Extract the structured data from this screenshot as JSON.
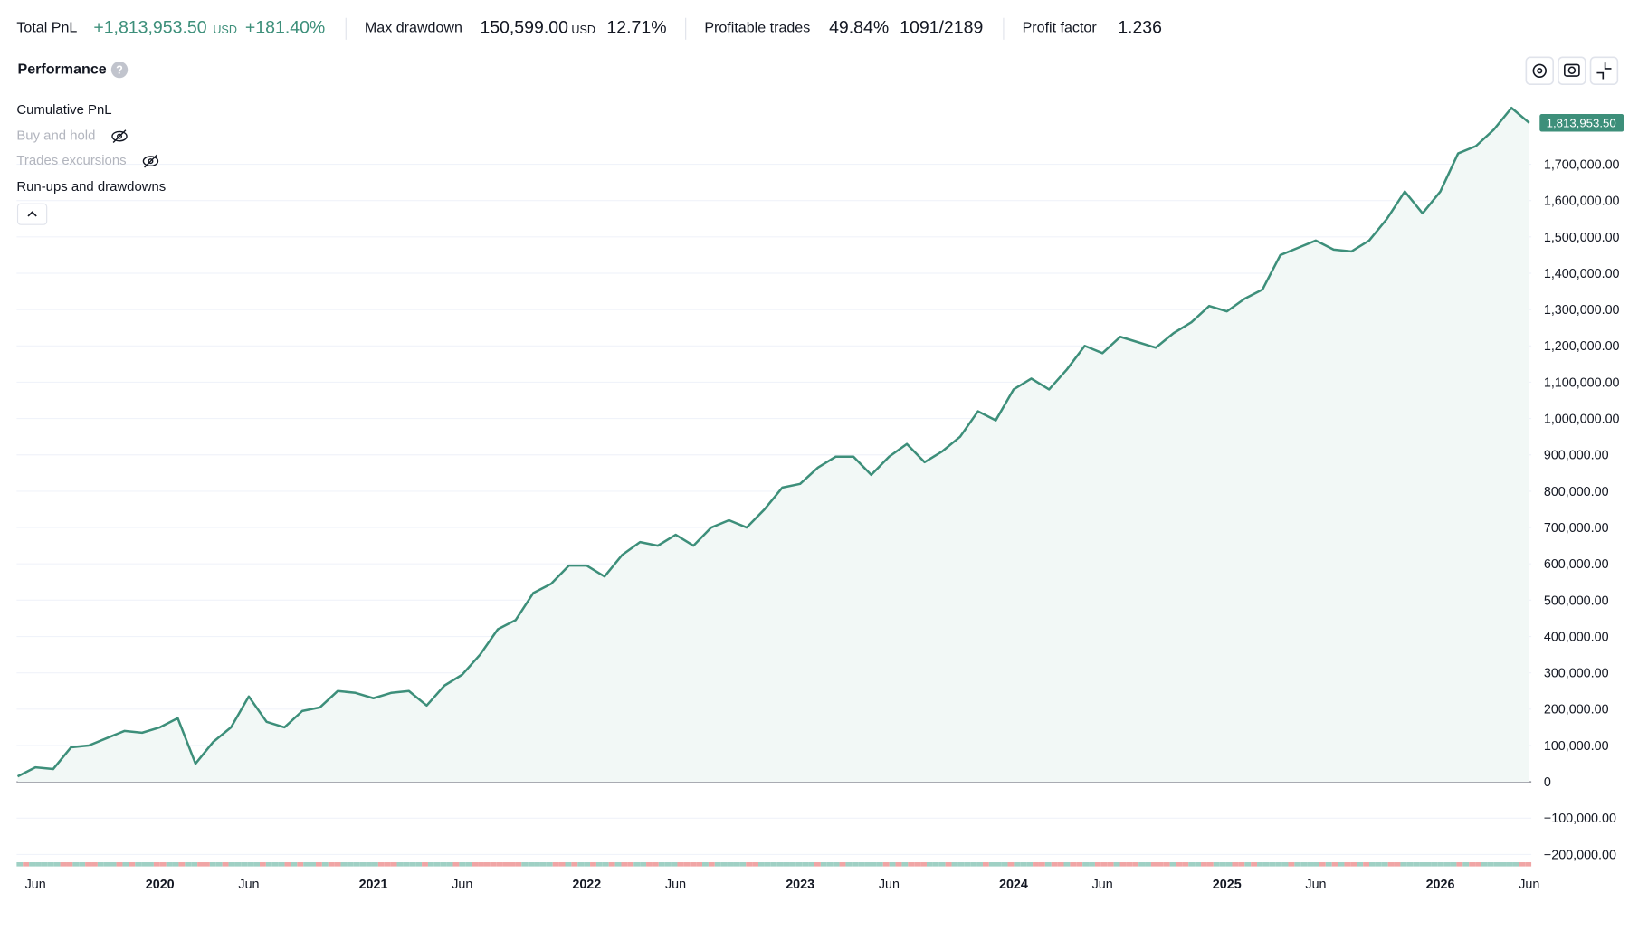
{
  "header": {
    "stats": [
      {
        "label": "Total PnL",
        "value": "+1,813,953.50",
        "unit": "USD",
        "extra": "+181.40%"
      },
      {
        "label": "Max drawdown",
        "value": "150,599.00",
        "unit": "USD",
        "extra": "12.71%"
      },
      {
        "label": "Profitable trades",
        "value": "49.84%",
        "extra": "1091/2189"
      },
      {
        "label": "Profit factor",
        "value": "1.236"
      }
    ]
  },
  "panel": {
    "title": "Performance",
    "help": "?",
    "legend_items": [
      "Buy and hold",
      "Trades excursions",
      "Run-ups and drawdowns"
    ]
  },
  "chart_data": {
    "type": "line",
    "x": [
      "2019-05",
      "2019-06",
      "2019-07",
      "2019-08",
      "2019-09",
      "2019-10",
      "2019-11",
      "2019-12",
      "2020-01",
      "2020-02",
      "2020-03",
      "2020-04",
      "2020-05",
      "2020-06",
      "2020-07",
      "2020-08",
      "2020-09",
      "2020-10",
      "2020-11",
      "2020-12",
      "2021-01",
      "2021-02",
      "2021-03",
      "2021-04",
      "2021-05",
      "2021-06",
      "2021-07",
      "2021-08",
      "2021-09",
      "2021-10",
      "2021-11",
      "2021-12",
      "2022-01",
      "2022-02",
      "2022-03",
      "2022-04",
      "2022-05",
      "2022-06",
      "2022-07",
      "2022-08",
      "2022-09",
      "2022-10",
      "2022-11",
      "2022-12",
      "2023-01",
      "2023-02",
      "2023-03",
      "2023-04",
      "2023-05",
      "2023-06",
      "2023-07",
      "2023-08",
      "2023-09",
      "2023-10",
      "2023-11",
      "2023-12",
      "2024-01",
      "2024-02",
      "2024-03",
      "2024-04",
      "2024-05",
      "2024-06",
      "2024-07",
      "2024-08",
      "2024-09",
      "2024-10",
      "2024-11",
      "2024-12",
      "2025-01",
      "2025-02",
      "2025-03",
      "2025-04",
      "2025-05",
      "2025-06",
      "2025-07",
      "2025-08",
      "2025-09",
      "2025-10",
      "2025-11",
      "2025-12",
      "2026-01",
      "2026-02",
      "2026-03",
      "2026-04",
      "2026-05",
      "2026-06"
    ],
    "series": [
      {
        "name": "Cumulative PnL",
        "color": "#3d8f7a",
        "values": [
          15000,
          40000,
          35000,
          95000,
          100000,
          120000,
          140000,
          135000,
          150000,
          175000,
          50000,
          110000,
          150000,
          235000,
          165000,
          150000,
          195000,
          205000,
          250000,
          245000,
          230000,
          245000,
          250000,
          210000,
          265000,
          295000,
          350000,
          420000,
          445000,
          520000,
          545000,
          595000,
          595000,
          565000,
          625000,
          660000,
          650000,
          680000,
          650000,
          700000,
          720000,
          700000,
          750000,
          810000,
          820000,
          865000,
          895000,
          895000,
          845000,
          895000,
          930000,
          880000,
          910000,
          950000,
          1020000,
          995000,
          1080000,
          1110000,
          1080000,
          1135000,
          1200000,
          1180000,
          1225000,
          1210000,
          1195000,
          1235000,
          1265000,
          1310000,
          1295000,
          1330000,
          1355000,
          1450000,
          1470000,
          1490000,
          1465000,
          1460000,
          1490000,
          1550000,
          1625000,
          1565000,
          1625000,
          1730000,
          1750000,
          1795000,
          1855000,
          1813953.5
        ]
      }
    ],
    "last_label": "1,813,953.50",
    "xlim": [
      "2019-05",
      "2026-06"
    ],
    "xticks": [
      {
        "value": "2019-06",
        "label": "Jun"
      },
      {
        "value": "2020-01",
        "label": "2020"
      },
      {
        "value": "2020-06",
        "label": "Jun"
      },
      {
        "value": "2021-01",
        "label": "2021"
      },
      {
        "value": "2021-06",
        "label": "Jun"
      },
      {
        "value": "2022-01",
        "label": "2022"
      },
      {
        "value": "2022-06",
        "label": "Jun"
      },
      {
        "value": "2023-01",
        "label": "2023"
      },
      {
        "value": "2023-06",
        "label": "Jun"
      },
      {
        "value": "2024-01",
        "label": "2024"
      },
      {
        "value": "2024-06",
        "label": "Jun"
      },
      {
        "value": "2025-01",
        "label": "2025"
      },
      {
        "value": "2025-06",
        "label": "Jun"
      },
      {
        "value": "2026-01",
        "label": "2026"
      },
      {
        "value": "2026-06",
        "label": "Jun"
      }
    ],
    "ylim": [
      -250000,
      1900000
    ],
    "yticks": [
      {
        "value": -200000,
        "label": "−200,000.00"
      },
      {
        "value": -100000,
        "label": "−100,000.00"
      },
      0,
      {
        "value": 100000,
        "label": "100,000.00"
      },
      {
        "value": 200000,
        "label": "200,000.00"
      },
      {
        "value": 300000,
        "label": "300,000.00"
      },
      {
        "value": 400000,
        "label": "400,000.00"
      },
      {
        "value": 500000,
        "label": "500,000.00"
      },
      {
        "value": 600000,
        "label": "600,000.00"
      },
      {
        "value": 700000,
        "label": "700,000.00"
      },
      {
        "value": 800000,
        "label": "800,000.00"
      },
      {
        "value": 900000,
        "label": "900,000.00"
      },
      {
        "value": 1000000,
        "label": "1,000,000.00"
      },
      {
        "value": 1100000,
        "label": "1,100,000.00"
      },
      {
        "value": 1200000,
        "label": "1,200,000.00"
      },
      {
        "value": 1300000,
        "label": "1,300,000.00"
      },
      {
        "value": 1400000,
        "label": "1,400,000.00"
      },
      {
        "value": 1500000,
        "label": "1,500,000.00"
      },
      {
        "value": 1600000,
        "label": "1,600,000.00"
      },
      {
        "value": 1700000,
        "label": "1,700,000.00"
      }
    ],
    "grid": true
  }
}
